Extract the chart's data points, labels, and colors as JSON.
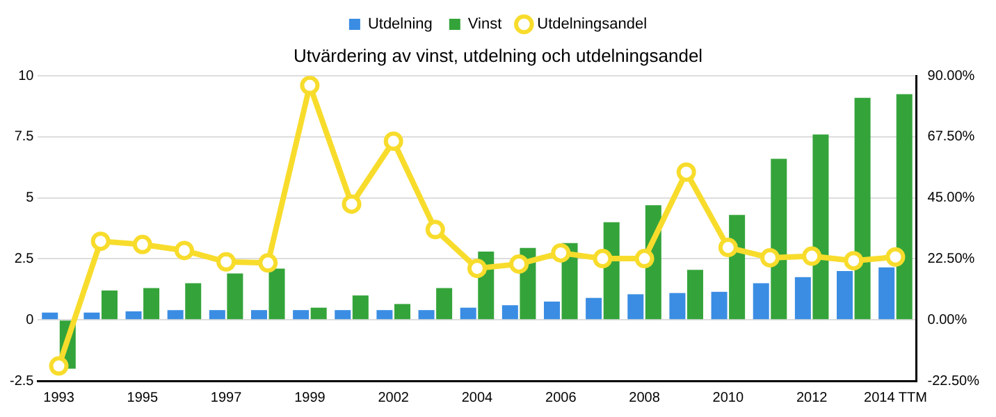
{
  "chart_data": {
    "type": "bar",
    "title": "Utvärdering av vinst, utdelning och utdelningsandel",
    "categories": [
      "1993",
      null,
      "1995",
      null,
      "1997",
      null,
      "1999",
      null,
      "2002",
      null,
      "2004",
      null,
      "2006",
      null,
      "2008",
      null,
      "2010",
      null,
      "2012",
      null,
      "2014 TTM"
    ],
    "series": [
      {
        "name": "Utdelning",
        "color": "#3a8de3",
        "values": [
          0.3,
          0.3,
          0.35,
          0.4,
          0.4,
          0.4,
          0.4,
          0.4,
          0.4,
          0.4,
          0.5,
          0.6,
          0.75,
          0.9,
          1.05,
          1.1,
          1.15,
          1.5,
          1.75,
          2.0,
          2.15
        ]
      },
      {
        "name": "Vinst",
        "color": "#34a43a",
        "values": [
          -2.0,
          1.2,
          1.3,
          1.5,
          1.9,
          2.1,
          0.5,
          1.0,
          0.65,
          1.3,
          2.8,
          2.95,
          3.15,
          4.0,
          4.7,
          2.05,
          4.3,
          6.6,
          7.6,
          9.1,
          9.25
        ]
      },
      {
        "name": "Utdelningsandel",
        "type": "line",
        "axis": "y2",
        "color": "#f8dc2c",
        "marker": "circle",
        "values": [
          -17,
          29,
          27.8,
          25.6,
          21.4,
          21,
          86.5,
          42.7,
          65.9,
          33.3,
          19,
          20.6,
          24.7,
          22.6,
          22.6,
          54.5,
          26.7,
          22.9,
          23.5,
          21.8,
          23.2
        ]
      }
    ],
    "ylim": [
      -2.5,
      10
    ],
    "yticks": [
      -2.5,
      0,
      2.5,
      5,
      7.5,
      10
    ],
    "y2lim": [
      -22.5,
      90
    ],
    "y2ticks": [
      {
        "value": -22.5,
        "label": "-22.50%"
      },
      {
        "value": 0,
        "label": "0.00%"
      },
      {
        "value": 22.5,
        "label": "22.50%"
      },
      {
        "value": 45,
        "label": "45.00%"
      },
      {
        "value": 67.5,
        "label": "67.50%"
      },
      {
        "value": 90,
        "label": "90.00%"
      }
    ],
    "grid": "y",
    "legend": "top"
  }
}
